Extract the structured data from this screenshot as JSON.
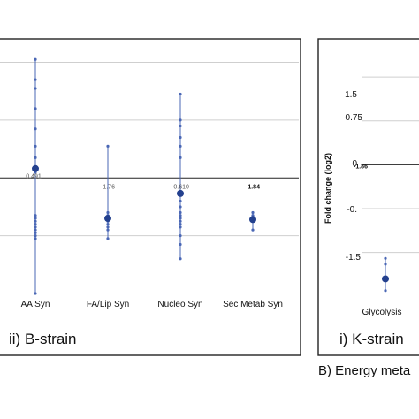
{
  "chart_data": [
    {
      "type": "scatter",
      "panel_title": "ii) B-strain",
      "categories": [
        "AA Syn",
        "FA/Lip Syn",
        "Nucleo Syn",
        "Sec Metab Syn"
      ],
      "ylim": [
        -2.0,
        2.1
      ],
      "zero_line": 0,
      "grid": true,
      "series": [
        {
          "mean": 0.16,
          "min": -2.0,
          "max": 2.05,
          "points": [
            2.05,
            1.7,
            1.55,
            1.2,
            0.85,
            0.55,
            0.35,
            0.1,
            -0.65,
            -0.7,
            -0.75,
            -0.8,
            -0.85,
            -0.9,
            -0.95,
            -1.0,
            -1.05,
            -2.0
          ],
          "label": "0.491",
          "label_bold": false
        },
        {
          "mean": -0.7,
          "min": -1.05,
          "max": 0.55,
          "points": [
            0.55,
            -0.6,
            -0.65,
            -0.75,
            -0.8,
            -0.85,
            -0.9,
            -1.05
          ],
          "label": "-1.76",
          "label_bold": false
        },
        {
          "mean": -0.27,
          "min": -1.4,
          "max": 1.45,
          "points": [
            1.45,
            1.0,
            0.9,
            0.7,
            0.55,
            0.35,
            -0.25,
            -0.4,
            -0.5,
            -0.6,
            -0.65,
            -0.7,
            -0.75,
            -0.8,
            -0.85,
            -1.0,
            -1.15,
            -1.4
          ],
          "label": "-0.610",
          "label_bold": false
        },
        {
          "mean": -0.72,
          "min": -0.9,
          "max": -0.6,
          "points": [
            -0.6,
            -0.65,
            -0.75,
            -0.9
          ],
          "label": "-1.84",
          "label_bold": true
        }
      ]
    },
    {
      "type": "scatter",
      "panel_title": "i) K-strain",
      "ylabel": "Fold change (log2)",
      "yticks": [
        "1.5",
        "0.75",
        "0",
        "-0.",
        "-1.5"
      ],
      "ylim": [
        -2.2,
        1.85
      ],
      "zero_line": 0,
      "grid": true,
      "categories": [
        "Glycolysis"
      ],
      "series": [
        {
          "mean": -1.95,
          "min": -2.15,
          "max": -1.6,
          "points": [
            -1.6,
            -1.7,
            -2.15
          ],
          "label": "-1.86",
          "label_bold": true
        }
      ]
    }
  ],
  "figure_caption": "B) Energy meta",
  "colors": {
    "marker": "#23408e",
    "whisker": "#4a67b5",
    "grid": "#cfcfcf",
    "axis": "#222222",
    "frame": "#222222"
  }
}
